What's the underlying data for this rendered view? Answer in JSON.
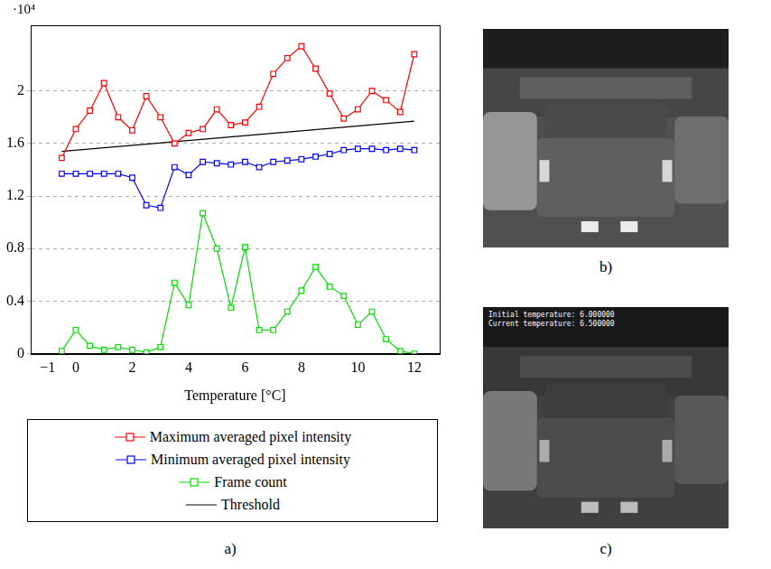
{
  "chart_data": {
    "type": "line",
    "x_label": "Temperature [°C]",
    "y_multiplier": "·10⁴",
    "x": [
      -0.5,
      0,
      0.5,
      1,
      1.5,
      2,
      2.5,
      3,
      3.5,
      4,
      4.5,
      5,
      5.5,
      6,
      6.5,
      7,
      7.5,
      8,
      8.5,
      9,
      9.5,
      10,
      10.5,
      11,
      11.5,
      12
    ],
    "series": [
      {
        "name": "Maximum averaged pixel intensity",
        "color": "#ff0000",
        "marker": "square",
        "line_style": "solid",
        "values": [
          1.49,
          1.71,
          1.85,
          2.06,
          1.8,
          1.7,
          1.96,
          1.8,
          1.6,
          1.68,
          1.71,
          1.86,
          1.74,
          1.76,
          1.88,
          2.13,
          2.25,
          2.34,
          2.17,
          1.98,
          1.79,
          1.86,
          2.0,
          1.93,
          1.84,
          2.28
        ]
      },
      {
        "name": "Minimum averaged pixel intensity",
        "color": "#0000ff",
        "marker": "square",
        "line_style": "solid",
        "values": [
          1.37,
          1.37,
          1.37,
          1.37,
          1.37,
          1.34,
          1.13,
          1.11,
          1.42,
          1.36,
          1.46,
          1.45,
          1.44,
          1.46,
          1.42,
          1.46,
          1.47,
          1.48,
          1.5,
          1.52,
          1.55,
          1.56,
          1.56,
          1.55,
          1.56,
          1.55
        ]
      },
      {
        "name": "Frame count",
        "color": "#00dd00",
        "marker": "square",
        "line_style": "solid",
        "values": [
          0.02,
          0.18,
          0.06,
          0.03,
          0.05,
          0.03,
          0.01,
          0.05,
          0.54,
          0.37,
          1.07,
          0.8,
          0.35,
          0.81,
          0.18,
          0.18,
          0.32,
          0.48,
          0.66,
          0.51,
          0.44,
          0.22,
          0.32,
          0.11,
          0.02,
          0.0
        ]
      },
      {
        "name": "Threshold",
        "color": "#000000",
        "marker": "none",
        "line_style": "solid",
        "x": [
          -0.5,
          12
        ],
        "values": [
          1.54,
          1.77
        ]
      }
    ],
    "xlim": [
      -1.6,
      12.9
    ],
    "xticks": [
      {
        "value": -1,
        "label": "−1"
      },
      0,
      2,
      4,
      6,
      8,
      10,
      12
    ],
    "ylim": [
      0,
      2.5
    ],
    "yticks": [
      0,
      0.4,
      0.8,
      1.2,
      1.6,
      2
    ],
    "grid": "y",
    "legend": "bottom"
  },
  "panels": [
    {
      "label": "a)"
    },
    {
      "label": "b)"
    },
    {
      "label": "c)",
      "overlay": [
        "Initial temperature: 6.000000",
        "Current temperature: 6.500000"
      ]
    }
  ]
}
